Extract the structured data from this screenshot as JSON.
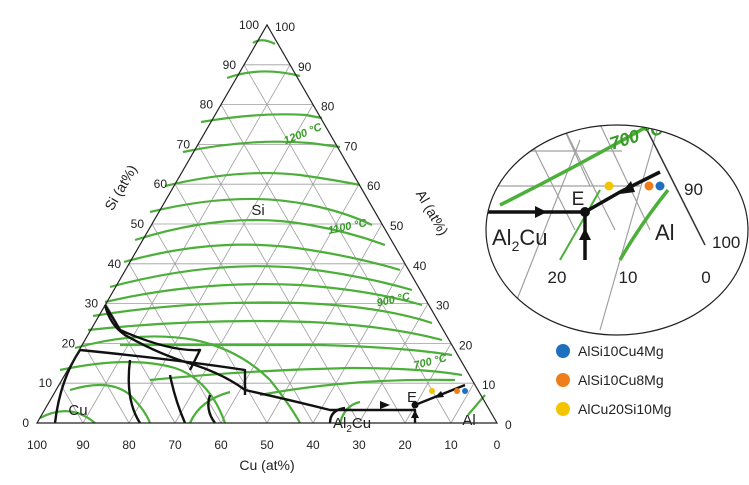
{
  "diagram": {
    "axes": {
      "left_title": "Si (at%)",
      "right_title": "Al (at%)",
      "bottom_title": "Cu (at%)",
      "left_ticks": [
        "0",
        "10",
        "20",
        "30",
        "40",
        "50",
        "60",
        "70",
        "80",
        "90",
        "100"
      ],
      "right_ticks": [
        "0",
        "10",
        "20",
        "30",
        "40",
        "50",
        "60",
        "70",
        "80",
        "90",
        "100"
      ],
      "bottom_ticks": [
        "100",
        "90",
        "80",
        "70",
        "60",
        "50",
        "40",
        "30",
        "20",
        "10",
        "0"
      ]
    },
    "phases": {
      "si": "Si",
      "cu": "Cu",
      "al": "Al",
      "al2cu": "Al",
      "al2cu_sub": "2",
      "al2cu_tail": "Cu",
      "eutectic": "E"
    },
    "isotherms": {
      "t1200": "1200 °C",
      "t1100": "1100 °C",
      "t900": "900 °C",
      "t700": "700 °C"
    },
    "colors": {
      "isotherm": "#4caf3a",
      "grid": "#9e9e9e",
      "boundary": "#111111"
    }
  },
  "inset": {
    "isotherm_label": "700 °C",
    "eutectic": "E",
    "phase_left": "Al",
    "phase_left_sub": "2",
    "phase_left_tail": "Cu",
    "phase_right": "Al",
    "tick_right_1": "90",
    "tick_right_2": "100",
    "tick_bottom": [
      "20",
      "10",
      "0"
    ]
  },
  "legend": [
    {
      "label": "AlSi10Cu4Mg",
      "color": "#1f6fbf"
    },
    {
      "label": "AlSi10Cu8Mg",
      "color": "#f07c1a"
    },
    {
      "label": "AlCu20Si10Mg",
      "color": "#f5c400"
    }
  ]
}
